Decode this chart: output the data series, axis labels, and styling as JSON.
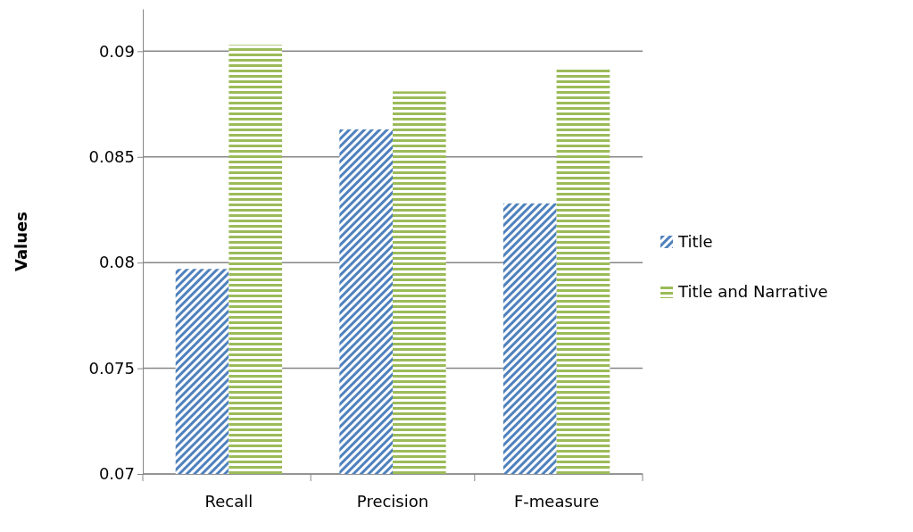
{
  "chart_data": {
    "type": "bar",
    "ylabel": "Values",
    "categories": [
      "Recall",
      "Precision",
      "F-measure"
    ],
    "series": [
      {
        "name": "Title",
        "color": "#4f81bd",
        "values": [
          0.0797,
          0.0863,
          0.0828
        ]
      },
      {
        "name": "Title and Narrative",
        "color": "#9bbb59",
        "values": [
          0.0903,
          0.0881,
          0.0892
        ]
      }
    ],
    "ylim": [
      0.07,
      0.092
    ],
    "yticks": [
      0.07,
      0.075,
      0.08,
      0.085,
      0.09
    ],
    "grid": "y",
    "legend": "right"
  }
}
